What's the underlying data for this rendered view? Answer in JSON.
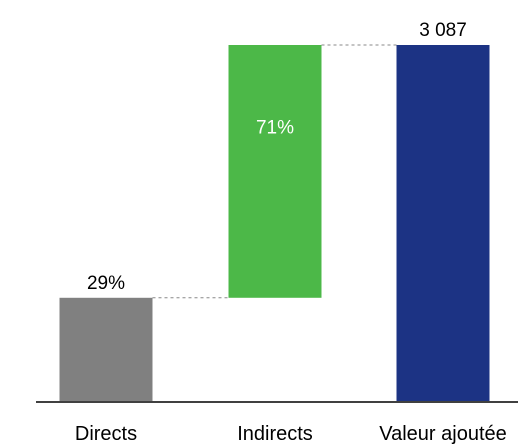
{
  "chart_data": {
    "type": "bar",
    "subtype": "waterfall",
    "categories": [
      "Directs",
      "Indirects",
      "Valeur ajoutée"
    ],
    "values": [
      895,
      2192,
      3087
    ],
    "bases": [
      0,
      895,
      0
    ],
    "data_labels": [
      "29%",
      "71%",
      "3 087"
    ],
    "label_positions": [
      "above",
      "inside",
      "above"
    ],
    "colors": [
      "#808080",
      "#4cb848",
      "#1c3384"
    ],
    "label_colors": [
      "#000000",
      "#ffffff",
      "#000000"
    ],
    "connectors": true,
    "ylim": [
      0,
      3087
    ],
    "grid": false,
    "legend": "none",
    "title": "",
    "xlabel": "",
    "ylabel": ""
  }
}
